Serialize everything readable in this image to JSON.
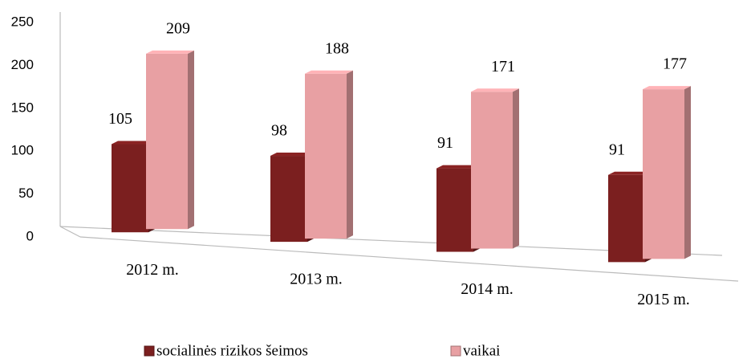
{
  "chart_data": {
    "type": "bar3d",
    "categories": [
      "2012 m.",
      "2013 m.",
      "2014 m.",
      "2015 m."
    ],
    "series": [
      {
        "name": "socialinės rizikos šeimos",
        "color": "#7b1f1f",
        "values": [
          105,
          98,
          91,
          91
        ]
      },
      {
        "name": "vaikai",
        "color": "#e8a0a3",
        "values": [
          209,
          188,
          171,
          177
        ]
      }
    ],
    "ylim": [
      0,
      250
    ],
    "yticks": [
      0,
      50,
      100,
      150,
      200,
      250
    ],
    "legend": "bottom"
  }
}
